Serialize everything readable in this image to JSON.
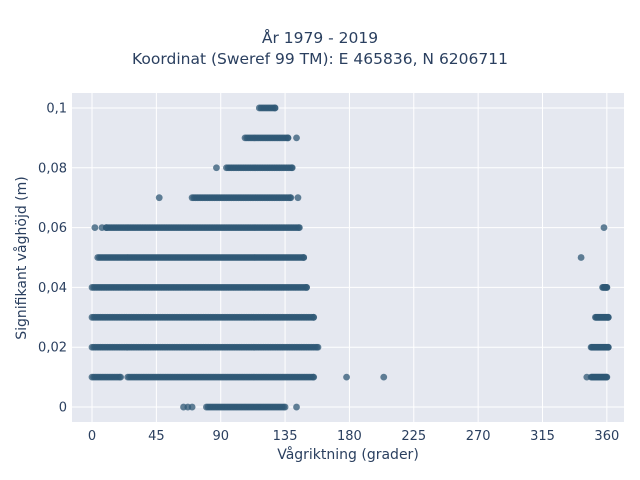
{
  "chart_data": {
    "type": "scatter",
    "title_lines": [
      "År 1979 - 2019",
      "Koordinat (Sweref 99 TM): E 465836, N 6206711"
    ],
    "xlabel": "Vågriktning (grader)",
    "ylabel": "Signifikant våghöjd (m)",
    "xlim": [
      -14,
      372
    ],
    "ylim": [
      -0.005,
      0.105
    ],
    "x_ticks": [
      0,
      45,
      90,
      135,
      180,
      225,
      270,
      315,
      360
    ],
    "x_tick_labels": [
      "0",
      "45",
      "90",
      "135",
      "180",
      "225",
      "270",
      "315",
      "360"
    ],
    "y_ticks": [
      0,
      0.02,
      0.04,
      0.06,
      0.08,
      0.1
    ],
    "y_tick_labels": [
      "0",
      "0,02",
      "0,04",
      "0,06",
      "0,08",
      "0,1"
    ],
    "grid": true,
    "marker_color": "#2f5875",
    "background_color": "#e5e8f0",
    "grid_color": "#ffffff",
    "bands": [
      {
        "y": 0.1,
        "x_ranges": [
          [
            117,
            128
          ]
        ]
      },
      {
        "y": 0.09,
        "x_ranges": [
          [
            107,
            137
          ]
        ],
        "outliers": [
          143
        ]
      },
      {
        "y": 0.08,
        "x_ranges": [
          [
            94,
            140
          ]
        ],
        "outliers": [
          87
        ]
      },
      {
        "y": 0.07,
        "x_ranges": [
          [
            70,
            139
          ]
        ],
        "outliers": [
          47,
          144
        ]
      },
      {
        "y": 0.06,
        "x_ranges": [
          [
            10,
            145
          ]
        ],
        "outliers": [
          2,
          7,
          10,
          358
        ]
      },
      {
        "y": 0.05,
        "x_ranges": [
          [
            4,
            148
          ]
        ],
        "outliers": [
          342
        ]
      },
      {
        "y": 0.04,
        "x_ranges": [
          [
            0,
            150
          ]
        ],
        "dense_ranges": [
          [
            357,
            360
          ]
        ]
      },
      {
        "y": 0.03,
        "x_ranges": [
          [
            0,
            155
          ]
        ],
        "dense_ranges": [
          [
            352,
            361
          ]
        ]
      },
      {
        "y": 0.02,
        "x_ranges": [
          [
            0,
            158
          ]
        ],
        "dense_ranges": [
          [
            349,
            361
          ]
        ]
      },
      {
        "y": 0.01,
        "x_ranges": [
          [
            0,
            20
          ],
          [
            25,
            155
          ]
        ],
        "dense_ranges": [
          [
            349,
            360
          ]
        ],
        "outliers": [
          178,
          204,
          346
        ]
      },
      {
        "y": 0.0,
        "x_ranges": [
          [
            80,
            135
          ]
        ],
        "outliers": [
          64,
          67,
          70,
          143
        ]
      }
    ]
  }
}
